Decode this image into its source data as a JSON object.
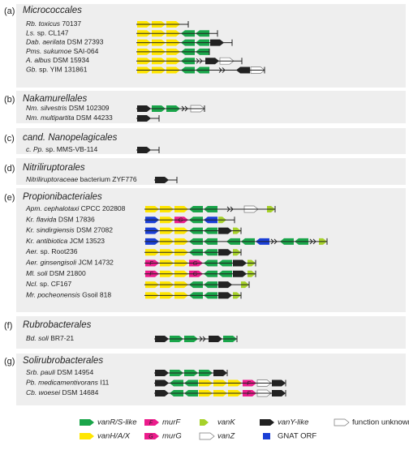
{
  "sections": [
    {
      "letter": "(a)",
      "title": "Micrococcales",
      "organisms": [
        {
          "genus": "Rb. toxicus",
          "strain": "70137"
        },
        {
          "genus": "Ls.",
          "strain": "sp. CL147"
        },
        {
          "genus": "Dab. aerilata",
          "strain": "DSM 27393"
        },
        {
          "genus": "Pms. sukumoe",
          "strain": "SAI-064"
        },
        {
          "genus": "A. albus",
          "strain": "DSM 15934"
        },
        {
          "genus": "Gb.",
          "strain": "sp. YIM 131861"
        }
      ]
    },
    {
      "letter": "(b)",
      "title": "Nakamurellales",
      "organisms": [
        {
          "genus": "Nm. silvestris",
          "strain": "DSM 102309"
        },
        {
          "genus": "Nm. multipartita",
          "strain": "DSM 44233"
        }
      ]
    },
    {
      "letter": "(c)",
      "title": "cand. Nanopelagicales",
      "organisms": [
        {
          "genus": "c. Pp.",
          "strain": "sp. MMS-VB-114"
        }
      ]
    },
    {
      "letter": "(d)",
      "title": "Nitriliruptorales",
      "organisms": [
        {
          "genus": "Nitriliruptoraceae",
          "strain": "bacterium ZYF776"
        }
      ]
    },
    {
      "letter": "(e)",
      "title": "Propionibacteriales",
      "organisms": [
        {
          "genus": "Apm. cephalotaxi",
          "strain": "CPCC 202808"
        },
        {
          "genus": "Kr. flavida",
          "strain": "DSM 17836"
        },
        {
          "genus": "Kr. sindirgiensis",
          "strain": "DSM 27082"
        },
        {
          "genus": "Kr. antibiotica",
          "strain": "JCM 13523"
        },
        {
          "genus": "Aer.",
          "strain": "sp. Root236"
        },
        {
          "genus": "Aer. ginsengisoli",
          "strain": "JCM 14732"
        },
        {
          "genus": "Ml. soli",
          "strain": "DSM 21800"
        },
        {
          "genus": "Ncl.",
          "strain": "sp. CF167"
        },
        {
          "genus": "Mr. pocheonensis",
          "strain": "Gsoil 818"
        }
      ]
    },
    {
      "letter": "(f)",
      "title": "Rubrobacterales",
      "organisms": [
        {
          "genus": "Bd. soli",
          "strain": "BR7-21"
        }
      ]
    },
    {
      "letter": "(g)",
      "title": "Solirubrobacterales",
      "organisms": [
        {
          "genus": "Srb. pauli",
          "strain": "DSM 14954"
        },
        {
          "genus": "Pb. medicamentivorans",
          "strain": "I11"
        },
        {
          "genus": "Cb. woesei",
          "strain": "DSM 14684"
        }
      ]
    }
  ],
  "legend": [
    {
      "label": "vanR/S-like"
    },
    {
      "label": "murF",
      "glyph": "F"
    },
    {
      "label": "vanK"
    },
    {
      "label": "vanY-like"
    },
    {
      "label": "function unknown"
    },
    {
      "label": "vanH/A/X"
    },
    {
      "label": "murG",
      "glyph": "G"
    },
    {
      "label": "vanZ"
    },
    {
      "label": "GNAT ORF"
    }
  ]
}
